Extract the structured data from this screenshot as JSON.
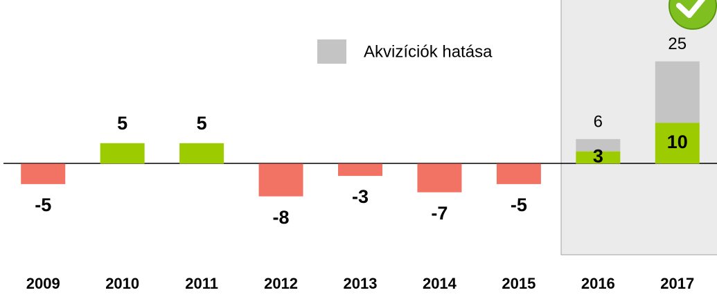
{
  "chart_data": {
    "type": "bar",
    "categories": [
      "2009",
      "2010",
      "2011",
      "2012",
      "2013",
      "2014",
      "2015",
      "2016",
      "2017"
    ],
    "values": [
      -5,
      5,
      5,
      -8,
      -3,
      -7,
      -5,
      3,
      10
    ],
    "positive_color": "#9ccb00",
    "negative_color": "#f27363",
    "stack": {
      "name": "Akvizíciók hatása",
      "color": "#c4c4c4",
      "values": [
        null,
        null,
        null,
        null,
        null,
        null,
        null,
        3,
        15
      ]
    },
    "totals": [
      null,
      null,
      null,
      null,
      null,
      null,
      null,
      6,
      25
    ],
    "ylim": [
      -26,
      40
    ],
    "legend": "top-right"
  }
}
